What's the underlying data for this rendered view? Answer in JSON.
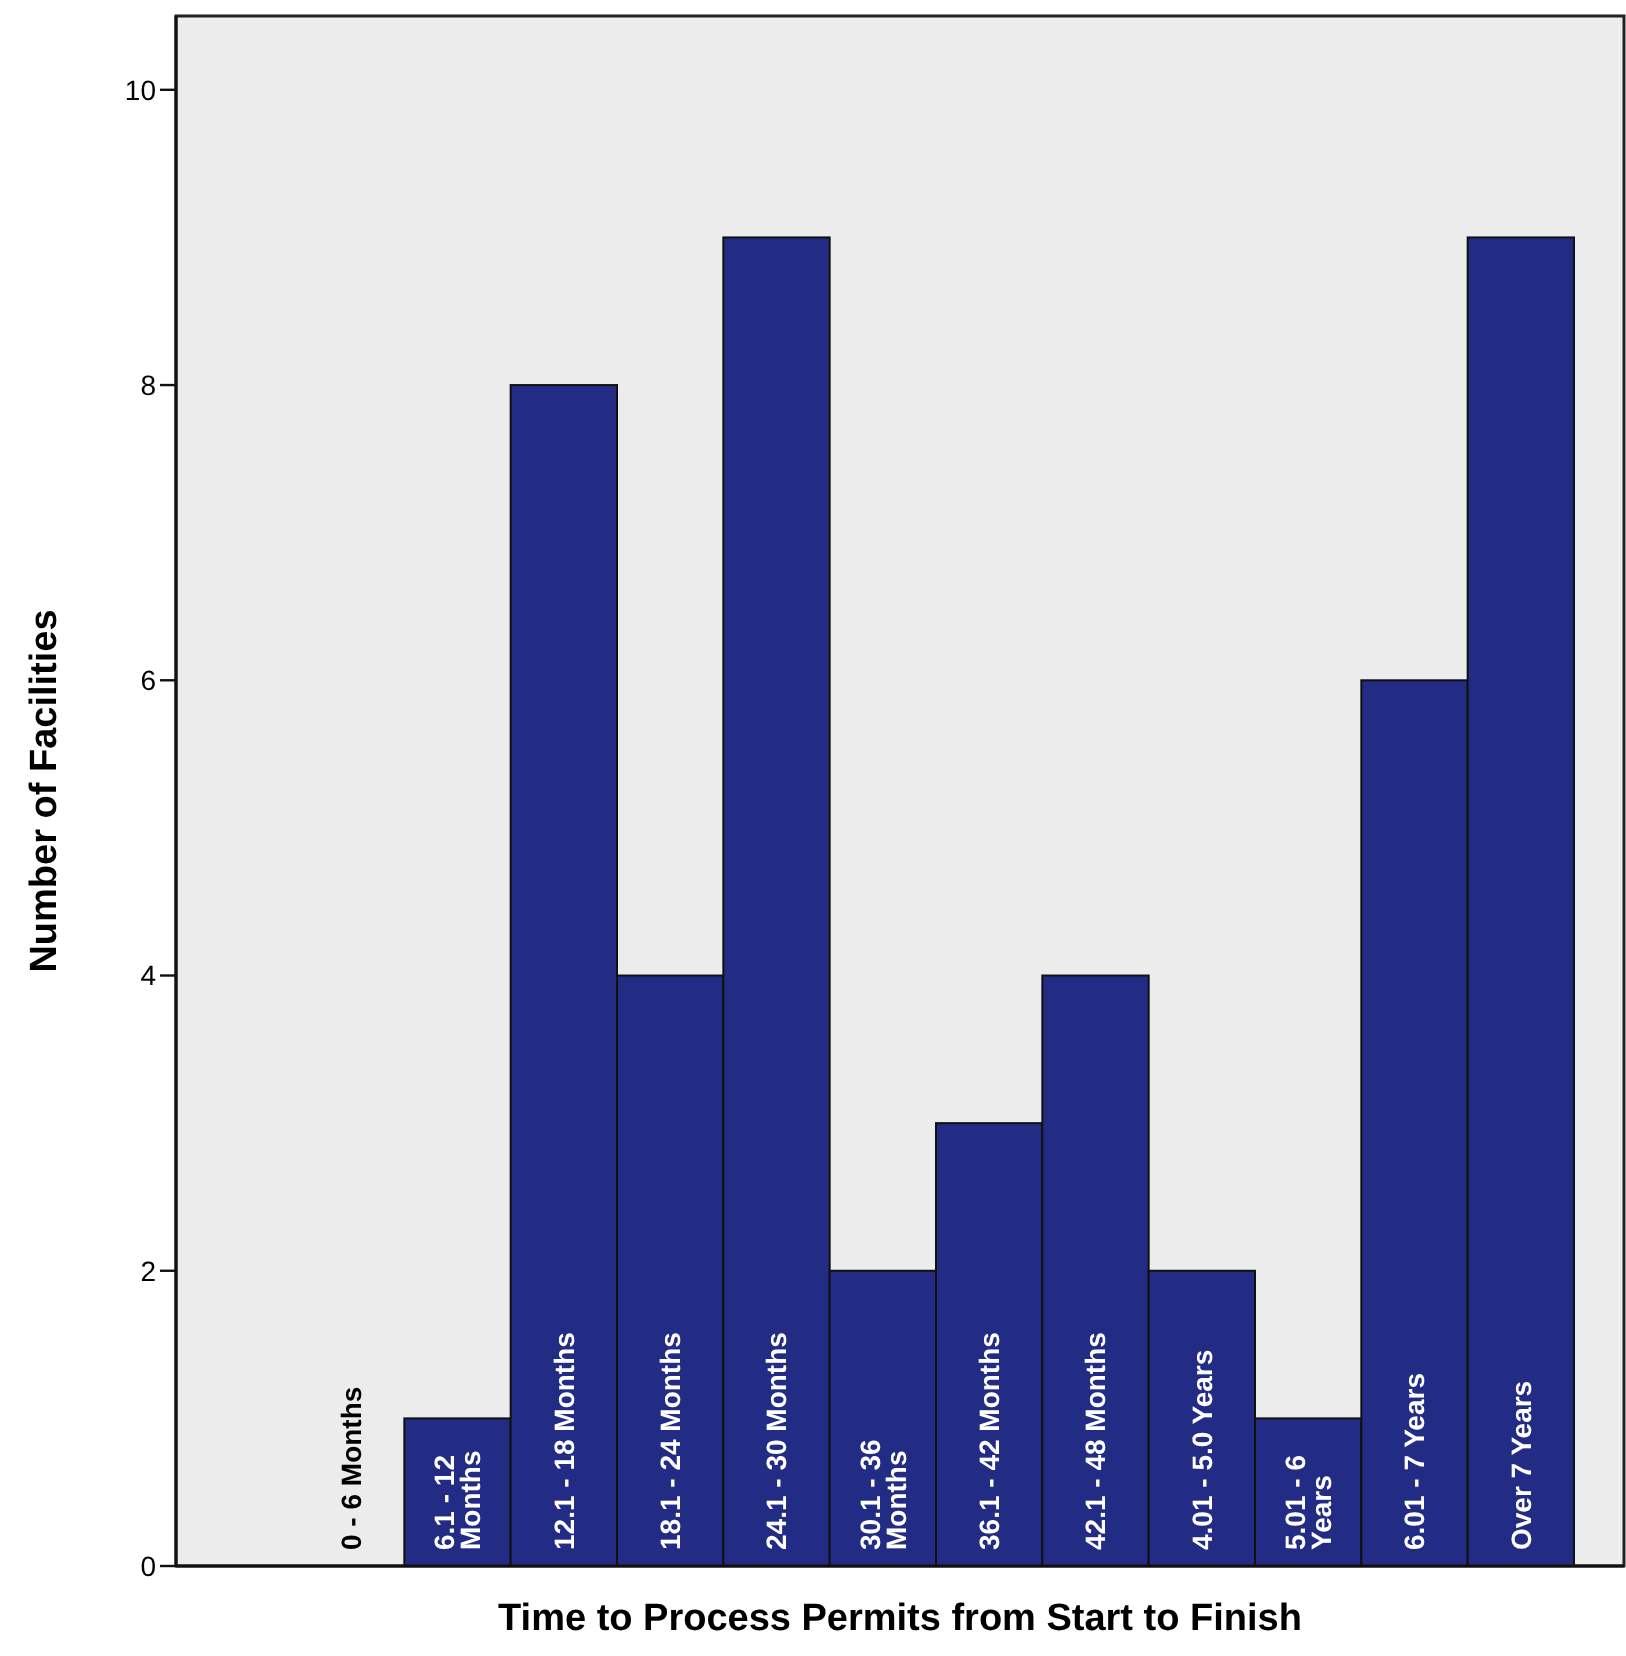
{
  "chart_data": {
    "type": "bar",
    "xlabel": "Time to Process Permits from Start to Finish",
    "ylabel": "Number of Facilities",
    "categories": [
      "0 - 6 Months",
      "6.1 - 12\nMonths",
      "12.1 - 18 Months",
      "18.1 - 24 Months",
      "24.1 - 30 Months",
      "30.1 - 36\nMonths",
      "36.1 - 42 Months",
      "42.1 - 48 Months",
      "4.01 - 5.0 Years",
      "5.01 - 6\nYears",
      "6.01 - 7 Years",
      "Over 7 Years"
    ],
    "values": [
      0,
      1,
      8,
      4,
      9,
      2,
      3,
      4,
      2,
      1,
      6,
      9
    ],
    "color": "#222c84",
    "ylim": [
      0,
      10.5
    ],
    "yticks": [
      0,
      2,
      4,
      6,
      8,
      10
    ],
    "grid": false,
    "data_labels": false
  }
}
